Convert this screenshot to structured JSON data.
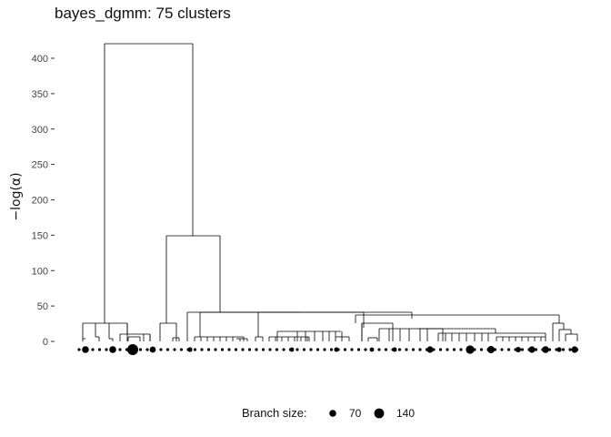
{
  "chart_data": {
    "type": "dendrogram",
    "title": "bayes_dgmm: 75 clusters",
    "ylabel": "−log(α)",
    "yticks": [
      0,
      50,
      100,
      150,
      200,
      250,
      300,
      350,
      400
    ],
    "ytick_labels": [
      "0",
      "50",
      "100",
      "150",
      "200",
      "250",
      "300",
      "350",
      "400"
    ],
    "ylim": [
      -18,
      435
    ],
    "grid": false,
    "n_leaves": 75,
    "root_height": 420,
    "merge_heights": [
      420,
      150,
      41,
      40,
      39,
      36,
      25,
      24,
      24,
      10,
      10,
      6,
      6,
      14,
      13,
      12,
      12,
      8,
      6,
      6,
      6,
      4,
      4,
      4
    ],
    "legend": {
      "title": "Branch size:",
      "position": "bottom",
      "entries": [
        {
          "label": "70",
          "size": 70
        },
        {
          "label": "140",
          "size": 140
        }
      ]
    }
  }
}
